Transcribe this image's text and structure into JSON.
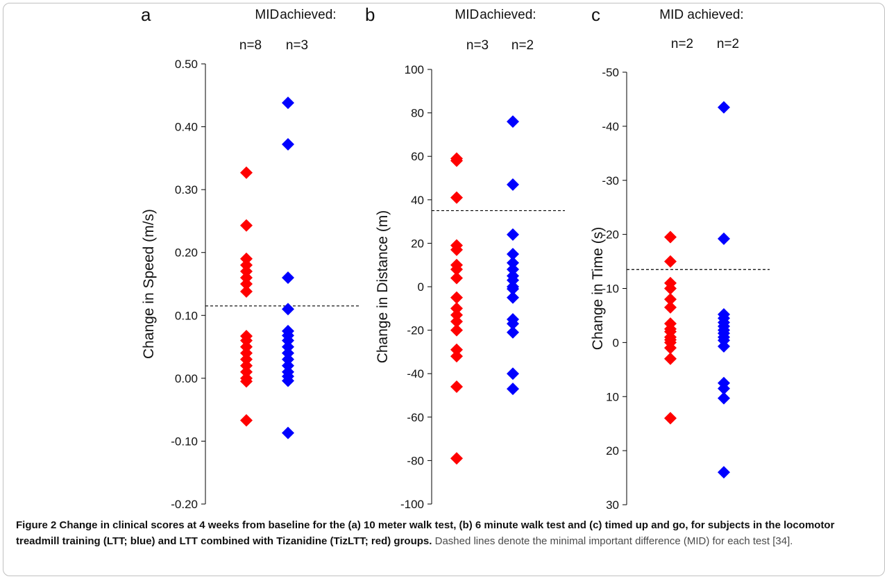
{
  "caption": {
    "bold": "Figure 2 Change in clinical scores at 4 weeks from baseline for the (a) 10 meter walk test, (b) 6 minute walk test and (c) timed up and go, for subjects in the locomotor treadmill training (LTT; blue) and LTT combined with Tizanidine (TizLTT; red) groups.",
    "normal": "Dashed lines denote the minimal important difference (MID) for each test [34]."
  },
  "colors": {
    "red": "#ff0000",
    "blue": "#0000ff"
  },
  "chart_data": [
    {
      "type": "scatter",
      "panel_letter": "a",
      "header": "MID achieved:",
      "header_parts": [
        "MID",
        "achieved:"
      ],
      "counts": [
        "n=8",
        "n=3"
      ],
      "ylabel": "Change in Speed (m/s)",
      "ylim": [
        -0.2,
        0.5
      ],
      "yticks": [
        -0.2,
        -0.1,
        0.0,
        0.1,
        0.2,
        0.3,
        0.4,
        0.5
      ],
      "ytick_labels": [
        "-0.20",
        "-0.10",
        "0.00",
        "0.10",
        "0.20",
        "0.30",
        "0.40",
        "0.50"
      ],
      "inverted": false,
      "mid": 0.115,
      "series": [
        {
          "color": "red",
          "values": [
            0.327,
            0.243,
            0.19,
            0.18,
            0.17,
            0.16,
            0.15,
            0.138,
            0.067,
            0.06,
            0.05,
            0.04,
            0.03,
            0.02,
            0.01,
            0.0,
            -0.005,
            -0.067
          ]
        },
        {
          "color": "blue",
          "values": [
            0.438,
            0.372,
            0.16,
            0.11,
            0.075,
            0.068,
            0.06,
            0.05,
            0.04,
            0.03,
            0.02,
            0.01,
            0.003,
            -0.004,
            -0.087
          ]
        }
      ]
    },
    {
      "type": "scatter",
      "panel_letter": "b",
      "header": "MID achieved:",
      "header_parts": [
        "MID",
        "achieved:"
      ],
      "counts": [
        "n=3",
        "n=2"
      ],
      "ylabel": "Change in Distance (m)",
      "ylim": [
        -100,
        100
      ],
      "yticks": [
        -100,
        -80,
        -60,
        -40,
        -20,
        0,
        20,
        40,
        60,
        80,
        100
      ],
      "ytick_labels": [
        "-100",
        "-80",
        "-60",
        "-40",
        "-20",
        "0",
        "20",
        "40",
        "60",
        "80",
        "100"
      ],
      "inverted": false,
      "mid": 35,
      "series": [
        {
          "color": "red",
          "values": [
            59,
            58,
            41,
            19,
            17,
            10,
            8,
            4,
            -5,
            -10,
            -13,
            -16,
            -20,
            -29,
            -32,
            -46,
            -79
          ]
        },
        {
          "color": "blue",
          "values": [
            76,
            47,
            24,
            15,
            11,
            8,
            5,
            3,
            0,
            -1,
            -5,
            -15,
            -17,
            -21,
            -40,
            -47
          ]
        }
      ]
    },
    {
      "type": "scatter",
      "panel_letter": "c",
      "header": "MID achieved:",
      "counts": [
        "n=2",
        "n=2"
      ],
      "ylabel": "Change in Time (s)",
      "ylim": [
        30,
        -50
      ],
      "yticks": [
        30,
        20,
        10,
        0,
        -10,
        -20,
        -30,
        -40,
        -50
      ],
      "ytick_labels": [
        "30",
        "20",
        "10",
        "0",
        "-10",
        "-20",
        "-30",
        "-40",
        "-50"
      ],
      "inverted": true,
      "mid": -13.5,
      "series": [
        {
          "color": "red",
          "values": [
            -19.5,
            -15,
            -11,
            -10,
            -8,
            -6.5,
            -3.5,
            -2.5,
            -2,
            -1,
            0,
            -0.5,
            1,
            3,
            14
          ]
        },
        {
          "color": "blue",
          "values": [
            -43.5,
            -19.2,
            -5.2,
            -4.5,
            -3.7,
            -3,
            -2.3,
            -1.7,
            -1,
            -0.4,
            0.7,
            7.5,
            8.5,
            10.3,
            24
          ]
        }
      ]
    }
  ]
}
